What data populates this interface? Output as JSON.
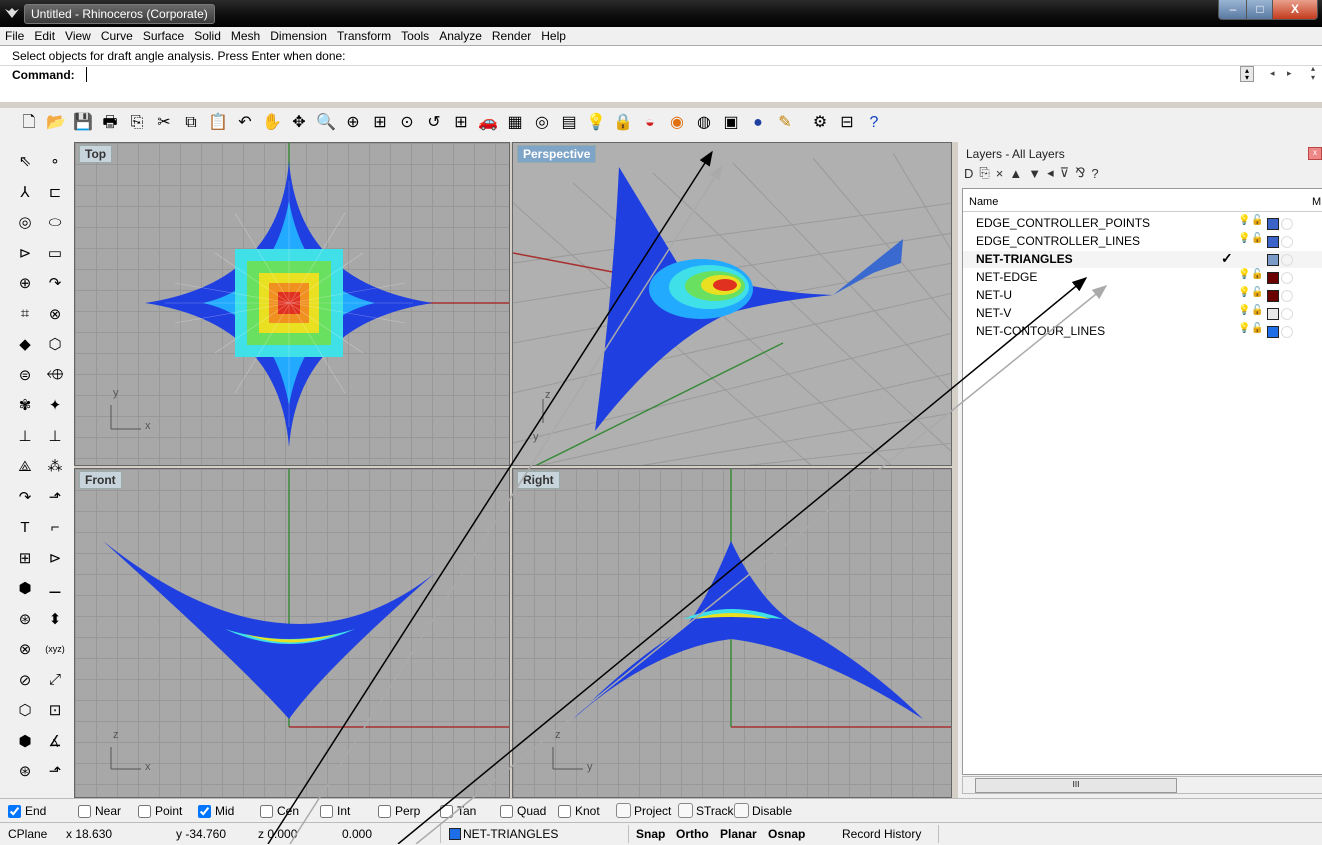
{
  "window": {
    "title": "Untitled - Rhinoceros (Corporate)",
    "minimize_glyph": "–",
    "maximize_glyph": "□",
    "close_glyph": "X"
  },
  "menu": [
    "File",
    "Edit",
    "View",
    "Curve",
    "Surface",
    "Solid",
    "Mesh",
    "Dimension",
    "Transform",
    "Tools",
    "Analyze",
    "Render",
    "Help"
  ],
  "command": {
    "prompt": "Select objects for draft angle analysis. Press Enter when done:",
    "label": "Command:",
    "value": ""
  },
  "toolbar_icons": [
    "new-icon",
    "open-icon",
    "save-icon",
    "print-icon",
    "import-icon",
    "cut-icon",
    "copy-icon",
    "paste-icon",
    "undo-icon",
    "pan-icon",
    "rotate-view-icon",
    "zoom-icon",
    "zoom-window-icon",
    "zoom-extents-icon",
    "zoom-selected-icon",
    "undo-view-icon",
    "four-viewports-icon",
    "car-icon",
    "grid-icon",
    "osnap-icon",
    "cplane-icon",
    "light-icon",
    "lock-icon",
    "shade-icon",
    "color-wheel-icon",
    "render-icon",
    "layer-icon",
    "sphere-icon",
    "analyze-icon",
    "options-icon",
    "properties-icon",
    "help-icon"
  ],
  "viewports": {
    "top": {
      "title": "Top",
      "axis_a": "y",
      "axis_b": "x"
    },
    "perspective": {
      "title": "Perspective",
      "axis_a": "z",
      "axis_b": "y"
    },
    "front": {
      "title": "Front",
      "axis_a": "z",
      "axis_b": "x"
    },
    "right": {
      "title": "Right",
      "axis_a": "z",
      "axis_b": "y"
    }
  },
  "layers": {
    "title": "Layers - All Layers",
    "column_name": "Name",
    "column_m": "M",
    "close_glyph": "x",
    "tools": [
      "D",
      "⎘",
      "×",
      "▲",
      "▼",
      "◂",
      "⊽",
      "⅋",
      "?"
    ],
    "rows": [
      {
        "name": "EDGE_CONTROLLER_POINTS",
        "color": "#3c64c8",
        "active": false
      },
      {
        "name": "EDGE_CONTROLLER_LINES",
        "color": "#3c64c8",
        "active": false
      },
      {
        "name": "NET-TRIANGLES",
        "color": "#7a9ac8",
        "active": true,
        "current_mark": "✓"
      },
      {
        "name": "NET-EDGE",
        "color": "#6a0000",
        "active": false
      },
      {
        "name": "NET-U",
        "color": "#6a0000",
        "active": false
      },
      {
        "name": "NET-V",
        "color": "#e8e8e8",
        "active": false
      },
      {
        "name": "NET-CONTOUR_LINES",
        "color": "#1e6ee8",
        "active": false
      }
    ],
    "scroll_thumb": "III"
  },
  "osnap": [
    {
      "label": "End",
      "checked": true
    },
    {
      "label": "Near",
      "checked": false
    },
    {
      "label": "Point",
      "checked": false
    },
    {
      "label": "Mid",
      "checked": true
    },
    {
      "label": "Cen",
      "checked": false
    },
    {
      "label": "Int",
      "checked": false
    },
    {
      "label": "Perp",
      "checked": false
    },
    {
      "label": "Tan",
      "checked": false
    },
    {
      "label": "Quad",
      "checked": false
    },
    {
      "label": "Knot",
      "checked": false
    }
  ],
  "osnap_buttons": [
    "Project",
    "STrack",
    "Disable"
  ],
  "status": {
    "cplane": "CPlane",
    "x": "x 18.630",
    "y": "y -34.760",
    "z": "z 0.000",
    "distance": "0.000",
    "layer": "NET-TRIANGLES",
    "snap": "Snap",
    "ortho": "Ortho",
    "planar": "Planar",
    "osnap": "Osnap",
    "record_history": "Record History"
  }
}
